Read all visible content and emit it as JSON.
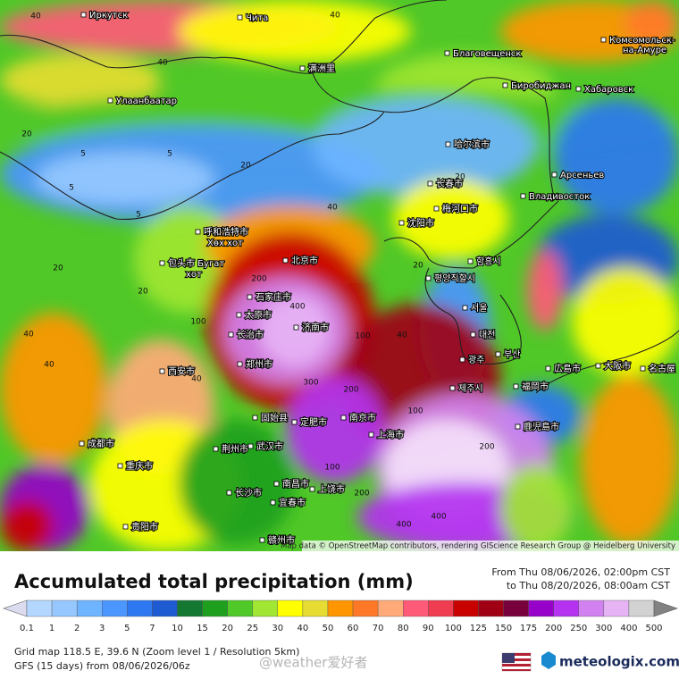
{
  "title": "Accumulated total precipitation (mm)",
  "period_from": "From Thu 08/06/2026, 02:00pm CST",
  "period_to": "to Thu 08/20/2026, 08:00am CST",
  "attribution": "Map data © OpenStreetMap contributors, rendering GIScience Research Group @ Heidelberg University",
  "grid_info": "Grid map 118.5 E, 39.6 N (Zoom level 1 / Resolution 5km)",
  "model_info": "GFS (15 days) from 08/06/2026/06z",
  "watermark": "@weather爱好者",
  "brand": "meteologix.com",
  "legend": {
    "under_color": "#dcdcf0",
    "items": [
      {
        "value": 0.1,
        "color": "#b4d7ff"
      },
      {
        "value": 1,
        "color": "#96c8ff"
      },
      {
        "value": 2,
        "color": "#6eb4ff"
      },
      {
        "value": 3,
        "color": "#4b96ff"
      },
      {
        "value": 5,
        "color": "#2d78f0"
      },
      {
        "value": 7,
        "color": "#1e5ad2"
      },
      {
        "value": 10,
        "color": "#147832"
      },
      {
        "value": 15,
        "color": "#1ea01e"
      },
      {
        "value": 20,
        "color": "#50c828"
      },
      {
        "value": 25,
        "color": "#a0e632"
      },
      {
        "value": 30,
        "color": "#ffff00"
      },
      {
        "value": 40,
        "color": "#e6dc32"
      },
      {
        "value": 50,
        "color": "#ff9600"
      },
      {
        "value": 60,
        "color": "#ff7828"
      },
      {
        "value": 70,
        "color": "#ffaa78"
      },
      {
        "value": 80,
        "color": "#ff5a78"
      },
      {
        "value": 90,
        "color": "#f03c50"
      },
      {
        "value": 100,
        "color": "#c80000"
      },
      {
        "value": 125,
        "color": "#a00014"
      },
      {
        "value": 150,
        "color": "#78003c"
      },
      {
        "value": 175,
        "color": "#9600c8"
      },
      {
        "value": 200,
        "color": "#b432f0"
      },
      {
        "value": 250,
        "color": "#d282f0"
      },
      {
        "value": 300,
        "color": "#e6b4f5"
      },
      {
        "value": 400,
        "color": "#d2d2d2"
      },
      {
        "value": 500,
        "color": "#828282"
      }
    ]
  },
  "cities": [
    "Иркутск",
    "Чита",
    "Благовещенск",
    "Комсомольск-",
    "на-Амуре",
    "Улаанбаатар",
    "满洲里",
    "Биробиджан",
    "Хабаровск",
    "哈尔滨市",
    "Арсеньев",
    "长春市",
    "Владивосток",
    "呼和浩特市",
    "Хөх хот",
    "沈阳市",
    "梅河口市",
    "包头市 Бугат",
    "хот",
    "北京市",
    "함흥시",
    "평양직할시",
    "石家庄市",
    "太原市",
    "서울",
    "济南市",
    "长治市",
    "대전",
    "郑州市",
    "西安市",
    "광주",
    "부산",
    "広島市",
    "大阪市",
    "名古屋",
    "福岡市",
    "제주시",
    "南京市",
    "固始县",
    "定肥市",
    "上海市",
    "鹿児島市",
    "成都市",
    "荆州市",
    "武汉市",
    "重庆市",
    "南昌市",
    "上饶市",
    "长沙市",
    "宜春市",
    "贵阳市",
    "赣州市"
  ],
  "contour_labels": [
    40,
    40,
    40,
    20,
    5,
    5,
    5,
    5,
    20,
    20,
    40,
    20,
    200,
    400,
    100,
    100,
    300,
    200,
    400,
    200,
    100,
    40,
    40,
    20,
    40,
    40,
    20,
    200,
    100,
    400
  ]
}
